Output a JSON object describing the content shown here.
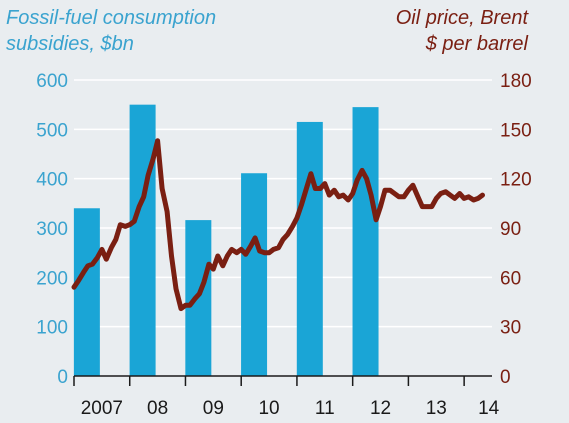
{
  "chart_data": {
    "type": "bar+line",
    "left_title": [
      "Fossil-fuel consumption",
      "subsidies, $bn"
    ],
    "right_title": [
      "Oil price, Brent",
      "$ per barrel"
    ],
    "x_tick_labels": [
      "2007",
      "08",
      "09",
      "10",
      "11",
      "12",
      "13",
      "14"
    ],
    "x_range": [
      2007,
      2014.5
    ],
    "left_axis": {
      "ylim": [
        0,
        600
      ],
      "ticks": [
        0,
        100,
        200,
        300,
        400,
        500,
        600
      ]
    },
    "right_axis": {
      "ylim": [
        0,
        180
      ],
      "ticks": [
        0,
        30,
        60,
        90,
        120,
        150,
        180
      ]
    },
    "series": [
      {
        "name": "Fossil-fuel consumption subsidies, $bn",
        "type": "bar",
        "axis": "left",
        "color": "#1aa5d6",
        "categories": [
          "2007",
          "2008",
          "2009",
          "2010",
          "2011",
          "2012"
        ],
        "values": [
          340,
          550,
          316,
          411,
          515,
          545
        ]
      },
      {
        "name": "Oil price, Brent, $ per barrel",
        "type": "line",
        "axis": "right",
        "color": "#7a1f12",
        "points": [
          [
            2007.0,
            54
          ],
          [
            2007.08,
            58
          ],
          [
            2007.17,
            63
          ],
          [
            2007.25,
            67
          ],
          [
            2007.33,
            68
          ],
          [
            2007.42,
            72
          ],
          [
            2007.5,
            77
          ],
          [
            2007.58,
            71
          ],
          [
            2007.67,
            78
          ],
          [
            2007.75,
            83
          ],
          [
            2007.83,
            92
          ],
          [
            2007.92,
            91
          ],
          [
            2008.0,
            92
          ],
          [
            2008.08,
            94
          ],
          [
            2008.17,
            103
          ],
          [
            2008.25,
            109
          ],
          [
            2008.33,
            122
          ],
          [
            2008.42,
            132
          ],
          [
            2008.5,
            143
          ],
          [
            2008.58,
            114
          ],
          [
            2008.67,
            100
          ],
          [
            2008.75,
            73
          ],
          [
            2008.83,
            53
          ],
          [
            2008.92,
            41
          ],
          [
            2009.0,
            43
          ],
          [
            2009.08,
            43
          ],
          [
            2009.17,
            47
          ],
          [
            2009.25,
            50
          ],
          [
            2009.33,
            57
          ],
          [
            2009.42,
            68
          ],
          [
            2009.5,
            65
          ],
          [
            2009.58,
            73
          ],
          [
            2009.67,
            67
          ],
          [
            2009.75,
            73
          ],
          [
            2009.83,
            77
          ],
          [
            2009.92,
            75
          ],
          [
            2010.0,
            77
          ],
          [
            2010.08,
            74
          ],
          [
            2010.17,
            79
          ],
          [
            2010.25,
            84
          ],
          [
            2010.33,
            76
          ],
          [
            2010.42,
            75
          ],
          [
            2010.5,
            75
          ],
          [
            2010.58,
            77
          ],
          [
            2010.67,
            78
          ],
          [
            2010.75,
            83
          ],
          [
            2010.83,
            86
          ],
          [
            2010.92,
            91
          ],
          [
            2011.0,
            96
          ],
          [
            2011.08,
            104
          ],
          [
            2011.17,
            114
          ],
          [
            2011.25,
            123
          ],
          [
            2011.33,
            114
          ],
          [
            2011.42,
            114
          ],
          [
            2011.5,
            117
          ],
          [
            2011.58,
            110
          ],
          [
            2011.67,
            113
          ],
          [
            2011.75,
            109
          ],
          [
            2011.83,
            110
          ],
          [
            2011.92,
            107
          ],
          [
            2012.0,
            111
          ],
          [
            2012.08,
            119
          ],
          [
            2012.17,
            125
          ],
          [
            2012.25,
            120
          ],
          [
            2012.33,
            110
          ],
          [
            2012.42,
            95
          ],
          [
            2012.5,
            103
          ],
          [
            2012.58,
            113
          ],
          [
            2012.67,
            113
          ],
          [
            2012.75,
            111
          ],
          [
            2012.83,
            109
          ],
          [
            2012.92,
            109
          ],
          [
            2013.0,
            113
          ],
          [
            2013.08,
            116
          ],
          [
            2013.17,
            109
          ],
          [
            2013.25,
            103
          ],
          [
            2013.33,
            103
          ],
          [
            2013.42,
            103
          ],
          [
            2013.5,
            108
          ],
          [
            2013.58,
            111
          ],
          [
            2013.67,
            112
          ],
          [
            2013.75,
            110
          ],
          [
            2013.83,
            108
          ],
          [
            2013.92,
            111
          ],
          [
            2014.0,
            108
          ],
          [
            2014.08,
            109
          ],
          [
            2014.17,
            107
          ],
          [
            2014.25,
            108
          ],
          [
            2014.33,
            110
          ]
        ]
      }
    ],
    "grid": "horizontal",
    "background": "#e9edf0",
    "gridline_color": "#ffffff"
  }
}
